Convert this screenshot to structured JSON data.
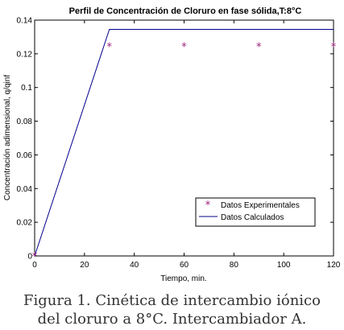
{
  "chart_data": {
    "type": "line",
    "title": "Perfil de Concentración de Cloruro en fase sólida,T:8°C",
    "xlabel": "Tiempo, min.",
    "ylabel": "Concentración adimensional, q/qinf",
    "xlim": [
      0,
      120
    ],
    "ylim": [
      0,
      0.14
    ],
    "xticks": [
      0,
      20,
      40,
      60,
      80,
      100,
      120
    ],
    "yticks": [
      0,
      0.02,
      0.04,
      0.06,
      0.08,
      0.1,
      0.12,
      0.14
    ],
    "xtick_labels": [
      "0",
      "20",
      "40",
      "60",
      "80",
      "100",
      "120"
    ],
    "ytick_labels": [
      "0",
      "0.02",
      "0.04",
      "0.06",
      "0.08",
      "0.1",
      "0.12",
      "0.14"
    ],
    "grid": false,
    "legend_position": "lower-right",
    "series": [
      {
        "name": "Datos Experimentales",
        "style": "marker",
        "color": "#9b1f7a",
        "x": [
          0,
          30,
          60,
          90,
          120
        ],
        "y": [
          0,
          0.1245,
          0.1245,
          0.1245,
          0.1245
        ]
      },
      {
        "name": "Datos Calculados",
        "style": "line",
        "color": "#00008b",
        "x": [
          0,
          30,
          120
        ],
        "y": [
          0,
          0.1345,
          0.1345
        ]
      }
    ]
  },
  "caption": {
    "line1": "Figura 1. Cinética de intercambio iónico",
    "line2": "del cloruro a 8°C. Intercambiador A."
  }
}
